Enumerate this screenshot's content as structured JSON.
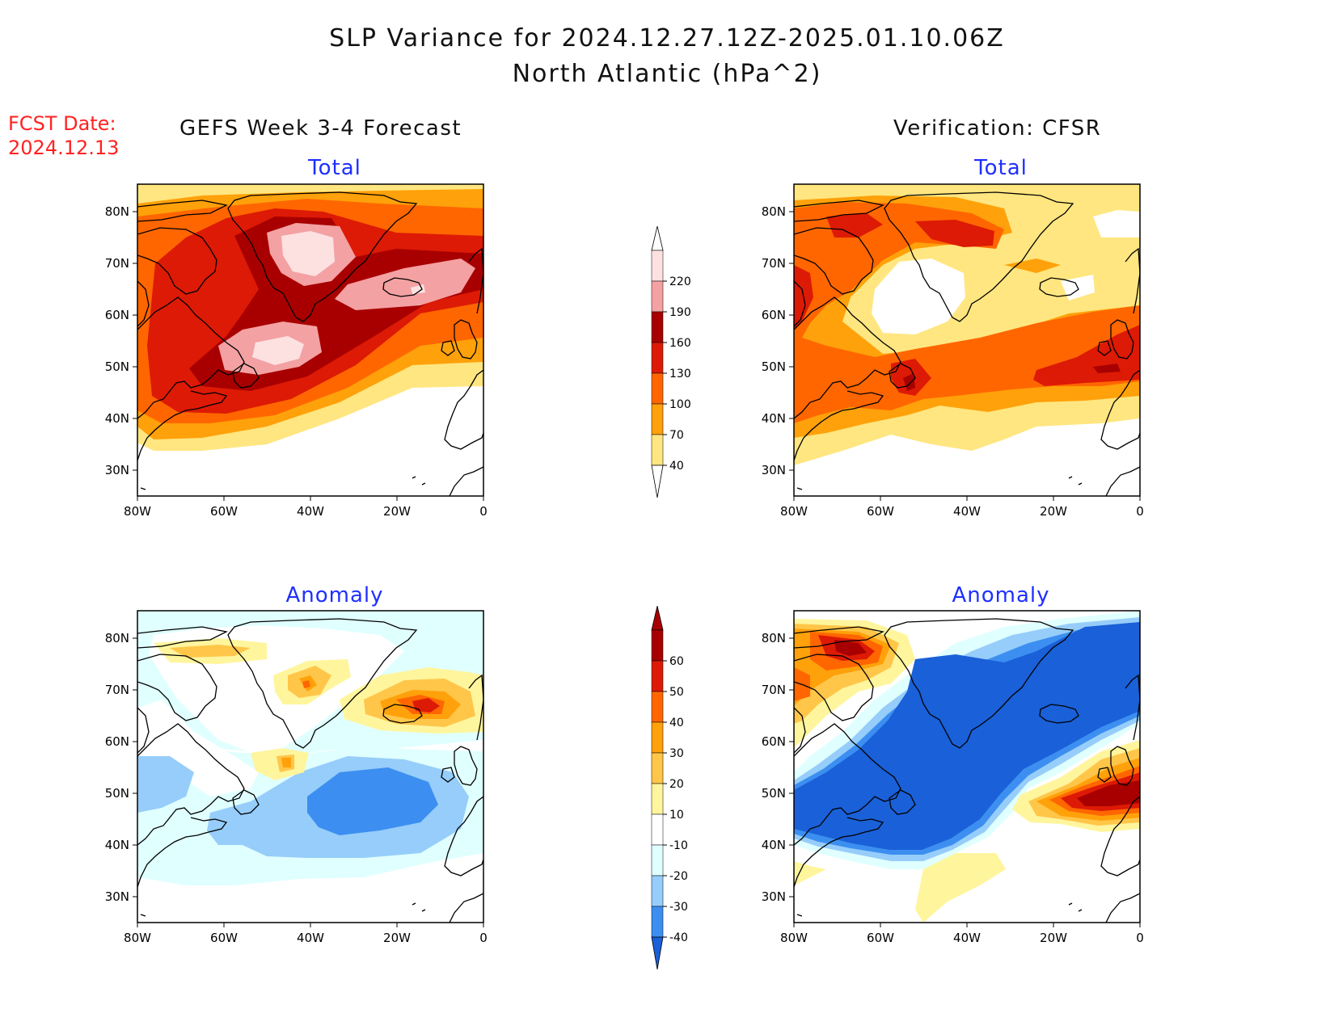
{
  "title": {
    "line1": "SLP Variance for 2024.12.27.12Z-2025.01.10.06Z",
    "line2": "North Atlantic (hPa^2)"
  },
  "fcst_date": {
    "label": "FCST Date:",
    "value": "2024.12.13"
  },
  "columns": {
    "left": "GEFS Week 3-4 Forecast",
    "right": "Verification: CFSR"
  },
  "panels": {
    "forecast_total": "Total",
    "verif_total": "Total",
    "forecast_anomaly": "Anomaly",
    "verif_anomaly": "Anomaly"
  },
  "axes": {
    "lat_labels": [
      "80N",
      "70N",
      "60N",
      "50N",
      "40N",
      "30N"
    ],
    "lon_labels": [
      "80W",
      "60W",
      "40W",
      "20W",
      "0"
    ]
  },
  "colorbar_total": {
    "levels": [
      "220",
      "190",
      "160",
      "130",
      "100",
      "70",
      "40"
    ],
    "colors": [
      "#fde1e1",
      "#f4a1a3",
      "#a80000",
      "#dd1a05",
      "#ff6600",
      "#ffa10a",
      "#ffe680"
    ]
  },
  "colorbar_anomaly": {
    "levels": [
      "60",
      "50",
      "40",
      "30",
      "20",
      "10",
      "-10",
      "-20",
      "-30",
      "-40"
    ],
    "colors": [
      "#a80000",
      "#dd1a05",
      "#ff6600",
      "#ffa10a",
      "#ffc649",
      "#fff59d",
      "#ffffff",
      "#e0ffff",
      "#96cdfa",
      "#3c8ff0",
      "#1a60d8"
    ]
  }
}
